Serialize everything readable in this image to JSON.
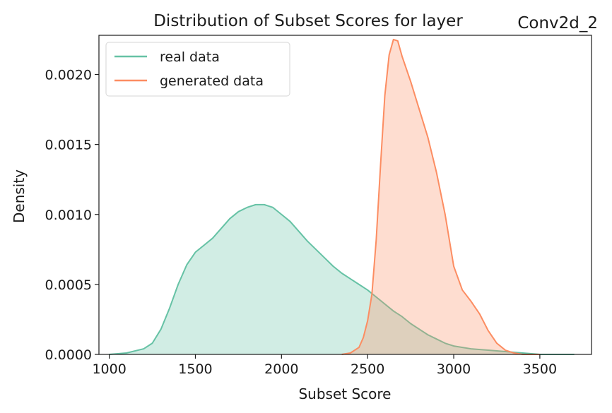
{
  "chart_data": {
    "type": "area",
    "title": "Distribution of Subset Scores for layer",
    "title_suffix": "Conv2d_2",
    "xlabel": "Subset Score",
    "ylabel": "Density",
    "xlim": [
      940,
      3800
    ],
    "ylim": [
      0,
      0.00228
    ],
    "xticks": [
      1000,
      1500,
      2000,
      2500,
      3000,
      3500
    ],
    "xtick_labels": [
      "1000",
      "1500",
      "2000",
      "2500",
      "3000",
      "3500"
    ],
    "yticks": [
      0,
      0.0005,
      0.001,
      0.0015,
      0.002
    ],
    "ytick_labels": [
      "0.0000",
      "0.0005",
      "0.0010",
      "0.0015",
      "0.0020"
    ],
    "grid": false,
    "legend_position": "top-left",
    "series": [
      {
        "name": "real data",
        "color": "#66c2a5",
        "x": [
          1000,
          1100,
          1200,
          1250,
          1300,
          1350,
          1400,
          1450,
          1500,
          1550,
          1600,
          1650,
          1700,
          1750,
          1800,
          1850,
          1900,
          1950,
          2000,
          2050,
          2100,
          2150,
          2200,
          2250,
          2300,
          2350,
          2400,
          2450,
          2500,
          2550,
          2600,
          2650,
          2700,
          2750,
          2800,
          2850,
          2900,
          2950,
          3000,
          3100,
          3200,
          3300,
          3400,
          3500,
          3600,
          3700
        ],
        "values": [
          0.0,
          1e-05,
          4e-05,
          8e-05,
          0.00018,
          0.00033,
          0.0005,
          0.00064,
          0.00073,
          0.00078,
          0.00083,
          0.0009,
          0.00097,
          0.00102,
          0.00105,
          0.00107,
          0.00107,
          0.00105,
          0.001,
          0.00095,
          0.00088,
          0.00081,
          0.00075,
          0.00069,
          0.00063,
          0.00058,
          0.00054,
          0.0005,
          0.00046,
          0.00041,
          0.00036,
          0.00031,
          0.00027,
          0.00022,
          0.00018,
          0.00014,
          0.00011,
          8e-05,
          6e-05,
          4e-05,
          3e-05,
          2e-05,
          1e-05,
          0.0,
          0.0,
          0.0
        ]
      },
      {
        "name": "generated data",
        "color": "#fc8d62",
        "x": [
          2350,
          2400,
          2450,
          2475,
          2500,
          2525,
          2550,
          2575,
          2600,
          2625,
          2650,
          2675,
          2700,
          2750,
          2800,
          2850,
          2900,
          2950,
          3000,
          3050,
          3100,
          3150,
          3200,
          3250,
          3300,
          3350,
          3400,
          3450,
          3500
        ],
        "values": [
          0.0,
          1e-05,
          5e-05,
          0.00012,
          0.00024,
          0.00043,
          0.00082,
          0.00135,
          0.00185,
          0.00214,
          0.00225,
          0.00224,
          0.00213,
          0.00195,
          0.00175,
          0.00155,
          0.0013,
          0.001,
          0.00063,
          0.00046,
          0.00038,
          0.00029,
          0.00017,
          8e-05,
          3e-05,
          1e-05,
          0.0,
          0.0,
          0.0
        ]
      }
    ]
  }
}
